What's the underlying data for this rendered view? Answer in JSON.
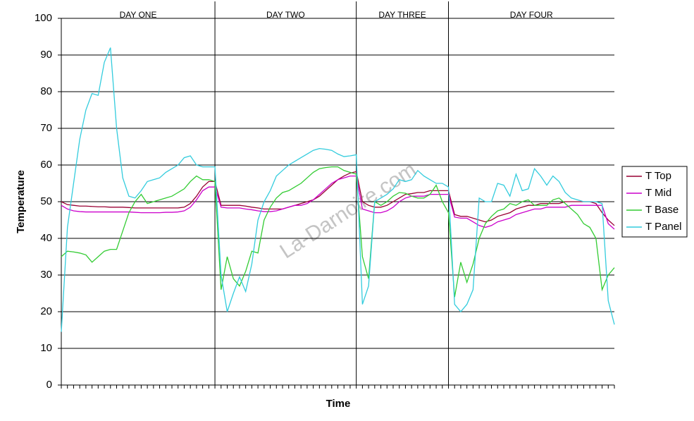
{
  "chart_data": {
    "type": "line",
    "x_label": "Time",
    "y_label": "Temperature",
    "watermark": "La-Darnoire.com",
    "ylim": [
      0,
      100
    ],
    "yticks": [
      0,
      10,
      20,
      30,
      40,
      50,
      60,
      70,
      80,
      90,
      100
    ],
    "grid": true,
    "legend": "right",
    "dividers": [
      25,
      48,
      63
    ],
    "day_labels": [
      "DAY ONE",
      "DAY TWO",
      "DAY THREE",
      "DAY FOUR"
    ],
    "categories": [
      null,
      null,
      null,
      null,
      null,
      null,
      null,
      null,
      null,
      null,
      null,
      null,
      null,
      null,
      null,
      null,
      null,
      null,
      null,
      null,
      null,
      null,
      null,
      null,
      null,
      null,
      null,
      null,
      null,
      null,
      null,
      null,
      null,
      null,
      null,
      null,
      null,
      null,
      null,
      null,
      null,
      null,
      null,
      null,
      null,
      null,
      null,
      null,
      null,
      null,
      null,
      null,
      null,
      null,
      null,
      null,
      null,
      null,
      null,
      null,
      null,
      null,
      null,
      null,
      null,
      null,
      null,
      null,
      null,
      null,
      null,
      null,
      null,
      null,
      null,
      null,
      null,
      null,
      null,
      null,
      null,
      null,
      null,
      null,
      null,
      null,
      null,
      null,
      null,
      null,
      null
    ],
    "series": [
      {
        "name": "T Top",
        "color": "#990033",
        "values": [
          50,
          49.2,
          49,
          48.8,
          48.8,
          48.7,
          48.6,
          48.6,
          48.5,
          48.5,
          48.5,
          48.4,
          48.3,
          48.3,
          48.3,
          48.3,
          48.3,
          48.3,
          48.3,
          48.3,
          48.5,
          49.5,
          51.5,
          54,
          55.5,
          55.5,
          49,
          49,
          49,
          49,
          48.8,
          48.5,
          48.3,
          48,
          48,
          48,
          48,
          48.5,
          49,
          49.5,
          50,
          50.5,
          51.5,
          53,
          54.5,
          56,
          57,
          57.8,
          58.2,
          50,
          49,
          48.5,
          48.5,
          49,
          50,
          51,
          52,
          52.2,
          52.5,
          52.5,
          53,
          53,
          53,
          53,
          46.5,
          46,
          46,
          45.5,
          45,
          44.5,
          45,
          46,
          46.5,
          47,
          48,
          48.5,
          49,
          49,
          49.5,
          49.5,
          49.5,
          49.5,
          50,
          50,
          50,
          50,
          50,
          49.5,
          47,
          45,
          43.5
        ]
      },
      {
        "name": "T Mid",
        "color": "#cc00cc",
        "values": [
          49,
          48,
          47.5,
          47.3,
          47.2,
          47.2,
          47.2,
          47.2,
          47.2,
          47.2,
          47.2,
          47.2,
          47.1,
          47,
          47,
          47,
          47,
          47.1,
          47.1,
          47.2,
          47.5,
          48.5,
          50.5,
          53,
          54,
          54,
          48.5,
          48.3,
          48.3,
          48.3,
          48,
          47.8,
          47.5,
          47.3,
          47.3,
          47.5,
          48,
          48.5,
          49,
          49,
          49.5,
          50.5,
          52,
          53.5,
          55,
          56,
          56.5,
          57,
          57,
          48,
          47.5,
          47,
          47,
          47.5,
          48.5,
          50,
          51,
          51.5,
          51.5,
          51.5,
          52,
          52,
          52,
          52,
          45.8,
          45.5,
          45.5,
          44.5,
          43.5,
          43,
          43.5,
          44.5,
          45,
          45.5,
          46.5,
          47,
          47.5,
          48,
          48,
          48.5,
          48.5,
          48.5,
          48.5,
          49,
          49,
          49,
          49,
          49,
          49,
          44,
          42.5
        ]
      },
      {
        "name": "T Base",
        "color": "#33cc33",
        "values": [
          35,
          36.5,
          36.3,
          36,
          35.5,
          33.5,
          35,
          36.5,
          37,
          37,
          42,
          47,
          50,
          52,
          49.5,
          50,
          50.5,
          51,
          51.5,
          52.5,
          53.5,
          55.5,
          57,
          56,
          56,
          55.5,
          26,
          35,
          29,
          27,
          31,
          36.5,
          36,
          45,
          48.5,
          51,
          52.5,
          53,
          54,
          55,
          56.5,
          58,
          59,
          59.3,
          59.5,
          59.5,
          58.5,
          58,
          57.5,
          35,
          29,
          50,
          49,
          50,
          51.5,
          52.5,
          52.3,
          51.5,
          51,
          51,
          52,
          54.5,
          50,
          47,
          24,
          33.5,
          28,
          33,
          40,
          44,
          46,
          47.5,
          48,
          49.5,
          49,
          50,
          50.5,
          49,
          49,
          49,
          50.5,
          51,
          49.5,
          48,
          46.5,
          44,
          43,
          40,
          26,
          30,
          32
        ]
      },
      {
        "name": "T Panel",
        "color": "#33ccdd",
        "values": [
          14.5,
          43,
          55,
          67,
          75,
          79.5,
          79,
          88,
          92,
          70,
          56.5,
          51.5,
          51,
          53,
          55.5,
          56,
          56.5,
          58,
          59,
          60,
          62,
          62.5,
          60,
          59.5,
          59.5,
          59.5,
          30,
          20,
          25,
          29.5,
          25.5,
          33,
          45,
          50,
          53,
          57,
          58.5,
          60,
          61,
          62,
          63,
          64,
          64.5,
          64.3,
          64,
          63,
          62.3,
          62.5,
          62.8,
          22,
          27,
          50,
          51,
          52,
          53.5,
          56,
          55.5,
          56,
          58.5,
          57,
          56,
          55,
          55,
          54,
          22,
          20,
          22,
          26,
          51,
          50,
          50,
          55,
          54.5,
          51.5,
          57.5,
          53,
          53.5,
          59,
          57,
          54.5,
          57,
          55.5,
          52.5,
          51,
          50.5,
          50,
          50,
          50,
          49.5,
          23,
          16.5
        ]
      }
    ]
  }
}
